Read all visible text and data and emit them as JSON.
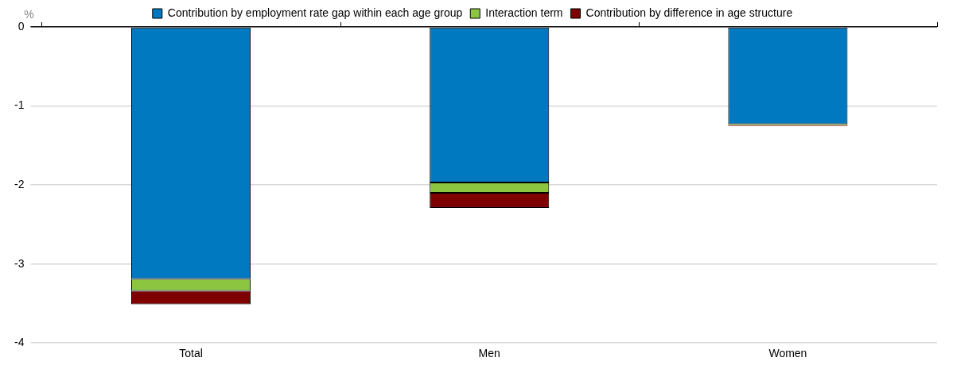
{
  "chart_data": {
    "type": "bar",
    "stacked": true,
    "ylabel": "%",
    "categories": [
      "Total",
      "Men",
      "Women"
    ],
    "series": [
      {
        "name": "Contribution by employment rate gap within each age group",
        "color": "#0179c0",
        "values": [
          -3.19,
          -1.97,
          -1.23
        ]
      },
      {
        "name": "Interaction term",
        "color": "#8cc641",
        "values": [
          -0.15,
          -0.13,
          -0.01
        ]
      },
      {
        "name": "Contribution by difference in age structure",
        "color": "#7f0000",
        "values": [
          -0.17,
          -0.19,
          -0.01
        ]
      }
    ],
    "ylim": [
      -4,
      0
    ],
    "yticks": [
      0,
      -1,
      -2,
      -3,
      -4
    ],
    "grid": "y",
    "legend": "top"
  }
}
